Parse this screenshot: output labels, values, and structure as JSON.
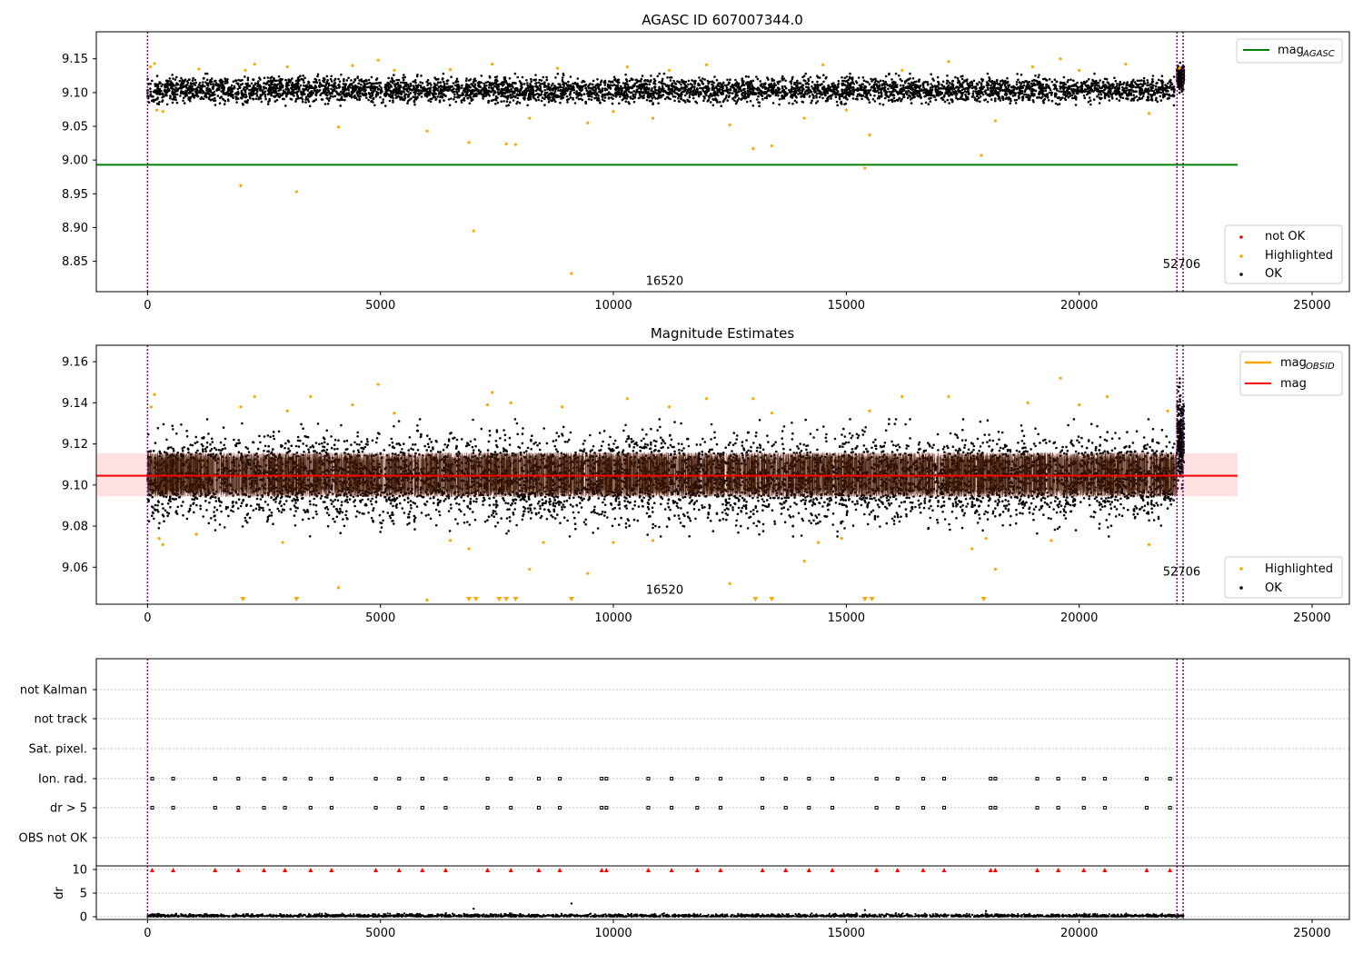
{
  "chart_data": [
    {
      "type": "scatter",
      "title": "AGASC ID 607007344.0",
      "xlim": [
        -1100,
        25800
      ],
      "ylim": [
        8.805,
        9.19
      ],
      "xticks": [
        0,
        5000,
        10000,
        15000,
        20000,
        25000
      ],
      "xtick_labels": [
        "0",
        "5000",
        "10000",
        "15000",
        "20000",
        "25000"
      ],
      "yticks": [
        8.85,
        8.9,
        8.95,
        9.0,
        9.05,
        9.1,
        9.15
      ],
      "ytick_labels": [
        "8.85",
        "8.90",
        "8.95",
        "9.00",
        "9.05",
        "9.10",
        "9.15"
      ],
      "vlines": [
        0,
        22100,
        22230
      ],
      "vline_color": "#800080",
      "annotations": [
        {
          "text": "16520",
          "x": 11100,
          "y": 8.815
        },
        {
          "text": "52706",
          "x": 22200,
          "y": 8.84
        }
      ],
      "hlines": [
        {
          "label": "mag",
          "sub": "AGASC",
          "y": 8.993,
          "x": [
            -1100,
            23400
          ],
          "color": "#008000"
        }
      ],
      "series": [
        {
          "name": "not OK",
          "color": "#ff0000",
          "points": []
        },
        {
          "name": "Highlighted",
          "color": "#ffa500",
          "points": [
            [
              60,
              9.138
            ],
            [
              150,
              9.143
            ],
            [
              200,
              9.074
            ],
            [
              330,
              9.072
            ],
            [
              1100,
              9.135
            ],
            [
              2000,
              8.962
            ],
            [
              2100,
              9.133
            ],
            [
              2300,
              9.142
            ],
            [
              3000,
              9.138
            ],
            [
              3200,
              8.953
            ],
            [
              4100,
              9.049
            ],
            [
              4400,
              9.14
            ],
            [
              4950,
              9.148
            ],
            [
              5300,
              9.133
            ],
            [
              6000,
              9.043
            ],
            [
              6500,
              9.134
            ],
            [
              6900,
              9.026
            ],
            [
              7000,
              8.895
            ],
            [
              7400,
              9.142
            ],
            [
              7700,
              9.024
            ],
            [
              7900,
              9.023
            ],
            [
              8200,
              9.062
            ],
            [
              8800,
              9.136
            ],
            [
              9100,
              8.832
            ],
            [
              9450,
              9.055
            ],
            [
              10000,
              9.072
            ],
            [
              10300,
              9.138
            ],
            [
              10850,
              9.062
            ],
            [
              11200,
              9.133
            ],
            [
              12000,
              9.141
            ],
            [
              12500,
              9.052
            ],
            [
              13000,
              9.017
            ],
            [
              13400,
              9.021
            ],
            [
              14100,
              9.062
            ],
            [
              14500,
              9.141
            ],
            [
              15000,
              9.074
            ],
            [
              15400,
              8.988
            ],
            [
              15500,
              9.037
            ],
            [
              16200,
              9.133
            ],
            [
              17200,
              9.146
            ],
            [
              17900,
              9.007
            ],
            [
              18200,
              9.058
            ],
            [
              19000,
              9.138
            ],
            [
              19600,
              9.15
            ],
            [
              20000,
              9.133
            ],
            [
              21000,
              9.142
            ],
            [
              21500,
              9.069
            ],
            [
              22150,
              9.136
            ]
          ]
        },
        {
          "name": "OK",
          "color": "#000000",
          "band": {
            "x": [
              0,
              22050
            ],
            "y": [
              9.08,
              9.128
            ]
          },
          "cluster": {
            "x": [
              22100,
              22250
            ],
            "y": [
              9.095,
              9.15
            ]
          }
        }
      ],
      "legend": [
        {
          "position": "top-right",
          "entries": [
            "magAGASC"
          ]
        },
        {
          "position": "bottom-right",
          "entries": [
            "not OK",
            "Highlighted",
            "OK"
          ]
        }
      ]
    },
    {
      "type": "scatter",
      "title": "Magnitude Estimates",
      "xlim": [
        -1100,
        25800
      ],
      "ylim": [
        9.042,
        9.168
      ],
      "xticks": [
        0,
        5000,
        10000,
        15000,
        20000,
        25000
      ],
      "xtick_labels": [
        "0",
        "5000",
        "10000",
        "15000",
        "20000",
        "25000"
      ],
      "yticks": [
        9.06,
        9.08,
        9.1,
        9.12,
        9.14,
        9.16
      ],
      "ytick_labels": [
        "9.06",
        "9.08",
        "9.10",
        "9.12",
        "9.14",
        "9.16"
      ],
      "vlines": [
        0,
        22100,
        22230
      ],
      "vline_color": "#800080",
      "annotations": [
        {
          "text": "16520",
          "x": 11100,
          "y": 9.047
        },
        {
          "text": "52706",
          "x": 22200,
          "y": 9.056
        }
      ],
      "hlines": [
        {
          "label": "mag",
          "y": 9.1045,
          "x": [
            -1100,
            23400
          ],
          "color": "#ff0000",
          "band": [
            9.0945,
            9.1155
          ]
        }
      ],
      "series": [
        {
          "name": "Highlighted",
          "color": "#ffa500",
          "points": [
            [
              80,
              9.138
            ],
            [
              150,
              9.144
            ],
            [
              250,
              9.074
            ],
            [
              330,
              9.071
            ],
            [
              1050,
              9.076
            ],
            [
              2000,
              9.138
            ],
            [
              2300,
              9.143
            ],
            [
              2900,
              9.072
            ],
            [
              3000,
              9.136
            ],
            [
              3500,
              9.143
            ],
            [
              4100,
              9.05
            ],
            [
              4400,
              9.139
            ],
            [
              4950,
              9.149
            ],
            [
              5300,
              9.135
            ],
            [
              6000,
              9.044
            ],
            [
              6500,
              9.073
            ],
            [
              6900,
              9.069
            ],
            [
              7300,
              9.139
            ],
            [
              7400,
              9.145
            ],
            [
              7800,
              9.14
            ],
            [
              8200,
              9.059
            ],
            [
              8500,
              9.072
            ],
            [
              8900,
              9.138
            ],
            [
              9450,
              9.057
            ],
            [
              10000,
              9.072
            ],
            [
              10300,
              9.142
            ],
            [
              10850,
              9.073
            ],
            [
              11200,
              9.138
            ],
            [
              12000,
              9.142
            ],
            [
              12500,
              9.052
            ],
            [
              13000,
              9.142
            ],
            [
              13400,
              9.135
            ],
            [
              14100,
              9.063
            ],
            [
              14400,
              9.072
            ],
            [
              14900,
              9.074
            ],
            [
              15500,
              9.136
            ],
            [
              16200,
              9.143
            ],
            [
              17200,
              9.143
            ],
            [
              17700,
              9.069
            ],
            [
              18000,
              9.074
            ],
            [
              18200,
              9.059
            ],
            [
              18900,
              9.14
            ],
            [
              19400,
              9.073
            ],
            [
              19600,
              9.152
            ],
            [
              20000,
              9.139
            ],
            [
              20600,
              9.143
            ],
            [
              21500,
              9.071
            ],
            [
              21900,
              9.136
            ]
          ]
        },
        {
          "name": "OK",
          "color": "#000000",
          "band": {
            "x": [
              0,
              22050
            ],
            "y": [
              9.075,
              9.132
            ]
          },
          "cluster": {
            "x": [
              22100,
              22250
            ],
            "y": [
              9.088,
              9.158
            ]
          }
        },
        {
          "name": "mag_OBSID",
          "color": "#ffa500",
          "bars": {
            "x": [
              0,
              22250
            ],
            "y": [
              9.094,
              9.116
            ]
          }
        },
        {
          "name": "offscale",
          "color": "#ffa500",
          "marker": "triangle-down",
          "x": [
            2050,
            3200,
            6900,
            7050,
            7550,
            7700,
            7900,
            9100,
            13050,
            13400,
            15400,
            15550,
            17950
          ]
        }
      ],
      "legend": [
        {
          "position": "top-right",
          "entries": [
            "magOBSID",
            "mag"
          ]
        },
        {
          "position": "bottom-right",
          "entries": [
            "Highlighted",
            "OK"
          ]
        }
      ]
    },
    {
      "type": "scatter",
      "xlim": [
        -1100,
        25800
      ],
      "ylabel": "dr",
      "categories": [
        "not Kalman",
        "not track",
        "Sat. pixel.",
        "Ion. rad.",
        "dr > 5",
        "OBS not OK"
      ],
      "flag_x": [
        100,
        550,
        1450,
        1950,
        2500,
        2950,
        3500,
        3950,
        4900,
        5400,
        5900,
        6400,
        7300,
        7800,
        8400,
        8850,
        9750,
        9850,
        10750,
        11250,
        11800,
        12300,
        13200,
        13700,
        14200,
        14700,
        15650,
        16100,
        16650,
        17100,
        18100,
        18200,
        19100,
        19550,
        20100,
        20550,
        21450,
        21950
      ],
      "dr_yticks": [
        0,
        5,
        10
      ],
      "dr_ylim": [
        -0.5,
        10.5
      ],
      "dr_threshold": 10,
      "dr_outliers": [
        [
          7000,
          1.7
        ],
        [
          9100,
          2.8
        ],
        [
          15400,
          1.4
        ],
        [
          18000,
          1.2
        ]
      ],
      "xticks": [
        0,
        5000,
        10000,
        15000,
        20000,
        25000
      ],
      "xtick_labels": [
        "0",
        "5000",
        "10000",
        "15000",
        "20000",
        "25000"
      ],
      "vlines": [
        0,
        22100,
        22230
      ]
    }
  ],
  "legend_sub": {
    "agasc": "AGASC",
    "obsid": "OBSID"
  }
}
